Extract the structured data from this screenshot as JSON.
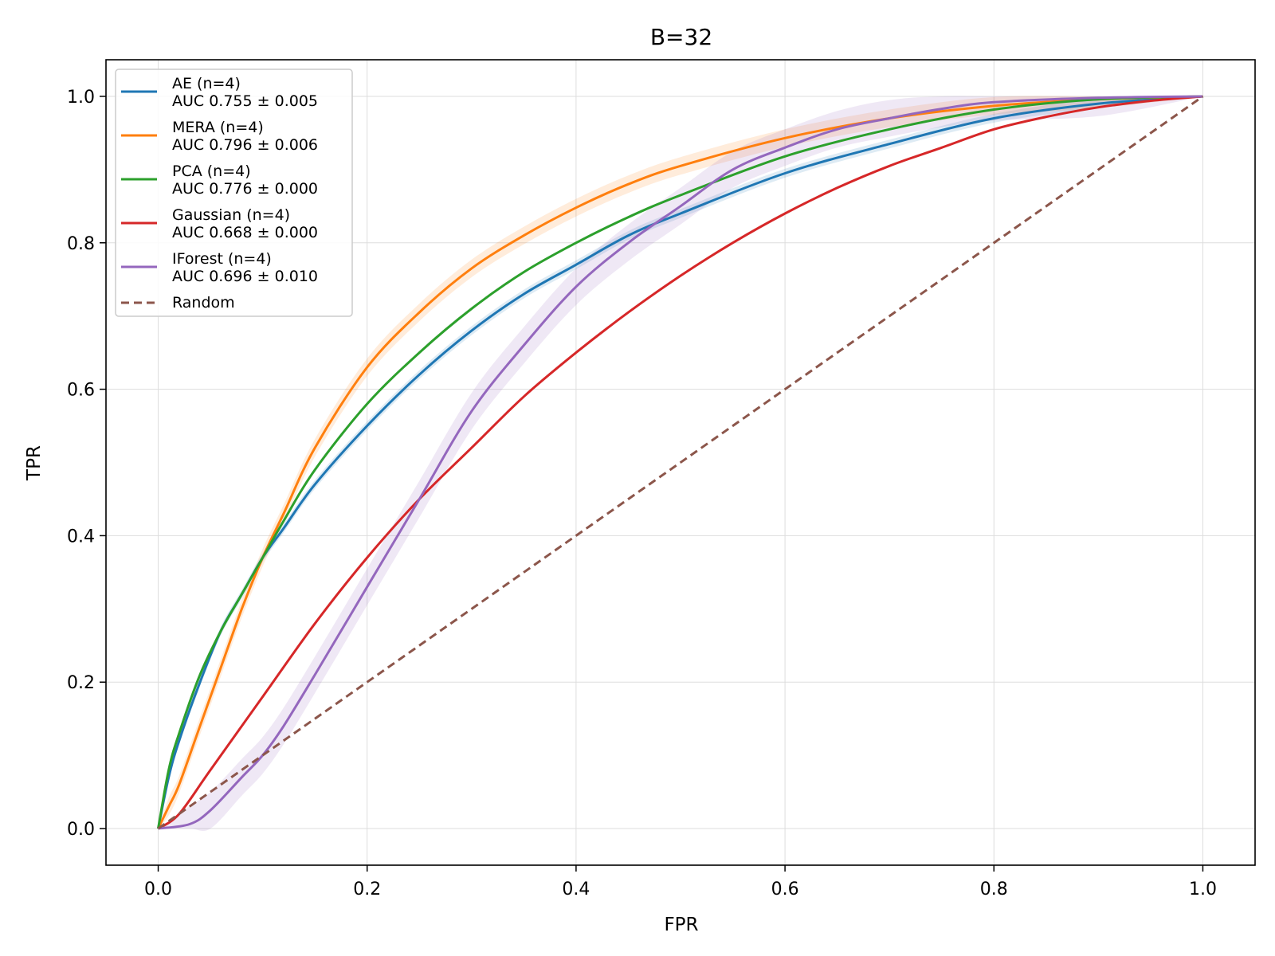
{
  "chart_data": {
    "type": "line",
    "title": "B=32",
    "xlabel": "FPR",
    "ylabel": "TPR",
    "xlim": [
      -0.05,
      1.05
    ],
    "ylim": [
      -0.05,
      1.05
    ],
    "grid": true,
    "legend_position": "top-left",
    "xticks": [
      "0.0",
      "0.2",
      "0.4",
      "0.6",
      "0.8",
      "1.0"
    ],
    "yticks": [
      "0.0",
      "0.2",
      "0.4",
      "0.6",
      "0.8",
      "1.0"
    ],
    "series": [
      {
        "name": "AE (n=4)",
        "auc_label": "AUC 0.755 ± 0.005",
        "color": "#1f77b4",
        "style": "solid",
        "band": 0.006,
        "x": [
          0,
          0.01,
          0.02,
          0.04,
          0.06,
          0.08,
          0.1,
          0.12,
          0.15,
          0.2,
          0.25,
          0.3,
          0.35,
          0.4,
          0.45,
          0.5,
          0.6,
          0.7,
          0.8,
          0.9,
          1.0
        ],
        "y": [
          0,
          0.07,
          0.12,
          0.2,
          0.27,
          0.32,
          0.37,
          0.41,
          0.47,
          0.55,
          0.62,
          0.68,
          0.73,
          0.77,
          0.81,
          0.84,
          0.895,
          0.935,
          0.97,
          0.99,
          1.0
        ]
      },
      {
        "name": "MERA (n=4)",
        "auc_label": "AUC 0.796 ± 0.006",
        "color": "#ff7f0e",
        "style": "solid",
        "band": 0.012,
        "x": [
          0,
          0.01,
          0.02,
          0.04,
          0.06,
          0.08,
          0.1,
          0.12,
          0.15,
          0.2,
          0.25,
          0.3,
          0.35,
          0.4,
          0.45,
          0.5,
          0.6,
          0.7,
          0.8,
          0.9,
          1.0
        ],
        "y": [
          0,
          0.03,
          0.06,
          0.14,
          0.22,
          0.3,
          0.37,
          0.43,
          0.52,
          0.63,
          0.705,
          0.765,
          0.81,
          0.848,
          0.88,
          0.905,
          0.943,
          0.97,
          0.987,
          0.996,
          1.0
        ]
      },
      {
        "name": "PCA (n=4)",
        "auc_label": "AUC 0.776 ± 0.000",
        "color": "#2ca02c",
        "style": "solid",
        "band": 0,
        "x": [
          0,
          0.01,
          0.02,
          0.04,
          0.06,
          0.08,
          0.1,
          0.12,
          0.15,
          0.2,
          0.25,
          0.3,
          0.35,
          0.4,
          0.45,
          0.5,
          0.6,
          0.7,
          0.8,
          0.9,
          1.0
        ],
        "y": [
          0,
          0.08,
          0.13,
          0.21,
          0.27,
          0.32,
          0.37,
          0.42,
          0.49,
          0.58,
          0.65,
          0.71,
          0.76,
          0.8,
          0.835,
          0.865,
          0.918,
          0.955,
          0.982,
          0.996,
          1.0
        ]
      },
      {
        "name": "Gaussian (n=4)",
        "auc_label": "AUC 0.668 ± 0.000",
        "color": "#d62728",
        "style": "solid",
        "band": 0,
        "x": [
          0,
          0.02,
          0.05,
          0.1,
          0.15,
          0.2,
          0.25,
          0.3,
          0.35,
          0.4,
          0.45,
          0.5,
          0.55,
          0.6,
          0.65,
          0.7,
          0.75,
          0.8,
          0.85,
          0.9,
          0.95,
          1.0
        ],
        "y": [
          0,
          0.02,
          0.08,
          0.18,
          0.28,
          0.37,
          0.45,
          0.52,
          0.59,
          0.65,
          0.705,
          0.755,
          0.8,
          0.84,
          0.875,
          0.905,
          0.93,
          0.955,
          0.972,
          0.985,
          0.994,
          1.0
        ]
      },
      {
        "name": "IForest (n=4)",
        "auc_label": "AUC 0.696 ± 0.010",
        "color": "#9467bd",
        "style": "solid",
        "band": 0.025,
        "x": [
          0,
          0.03,
          0.05,
          0.08,
          0.1,
          0.12,
          0.15,
          0.2,
          0.25,
          0.3,
          0.35,
          0.4,
          0.45,
          0.5,
          0.55,
          0.6,
          0.65,
          0.7,
          0.75,
          0.8,
          0.9,
          1.0
        ],
        "y": [
          0,
          0.006,
          0.025,
          0.07,
          0.1,
          0.14,
          0.21,
          0.33,
          0.45,
          0.57,
          0.66,
          0.74,
          0.8,
          0.85,
          0.9,
          0.93,
          0.955,
          0.97,
          0.983,
          0.992,
          0.998,
          1.0
        ]
      },
      {
        "name": "Random",
        "auc_label": "",
        "color": "#8c564b",
        "style": "dashed",
        "band": 0,
        "x": [
          0,
          1
        ],
        "y": [
          0,
          1
        ]
      }
    ]
  }
}
